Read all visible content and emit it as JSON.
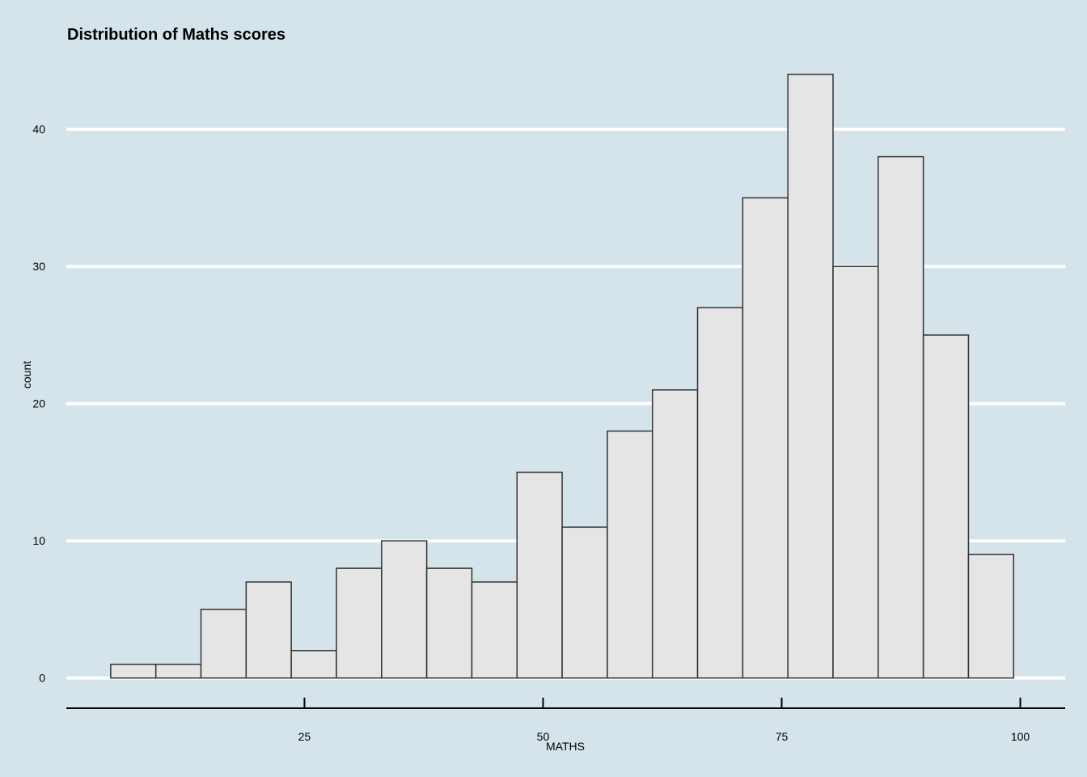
{
  "chart_data": {
    "type": "bar",
    "title": "Distribution of Maths scores",
    "xlabel": "MATHS",
    "ylabel": "count",
    "bin_width": 4.73,
    "bins": [
      {
        "start": 4.7,
        "end": 9.43,
        "count": 1
      },
      {
        "start": 9.43,
        "end": 14.16,
        "count": 1
      },
      {
        "start": 14.16,
        "end": 18.89,
        "count": 5
      },
      {
        "start": 18.89,
        "end": 23.62,
        "count": 7
      },
      {
        "start": 23.62,
        "end": 28.35,
        "count": 2
      },
      {
        "start": 28.35,
        "end": 33.08,
        "count": 8
      },
      {
        "start": 33.08,
        "end": 37.81,
        "count": 10
      },
      {
        "start": 37.81,
        "end": 42.54,
        "count": 8
      },
      {
        "start": 42.54,
        "end": 47.27,
        "count": 7
      },
      {
        "start": 47.27,
        "end": 52.0,
        "count": 15
      },
      {
        "start": 52.0,
        "end": 56.73,
        "count": 11
      },
      {
        "start": 56.73,
        "end": 61.46,
        "count": 18
      },
      {
        "start": 61.46,
        "end": 66.19,
        "count": 21
      },
      {
        "start": 66.19,
        "end": 70.92,
        "count": 27
      },
      {
        "start": 70.92,
        "end": 75.65,
        "count": 35
      },
      {
        "start": 75.65,
        "end": 80.38,
        "count": 44
      },
      {
        "start": 80.38,
        "end": 85.11,
        "count": 30
      },
      {
        "start": 85.11,
        "end": 89.84,
        "count": 38
      },
      {
        "start": 89.84,
        "end": 94.57,
        "count": 25
      },
      {
        "start": 94.57,
        "end": 99.3,
        "count": 9
      }
    ],
    "xlim": [
      0.05,
      104.7
    ],
    "ylim": [
      -2.2,
      46
    ],
    "x_ticks": [
      25,
      50,
      75,
      100
    ],
    "x_tick_labels": [
      "25",
      "50",
      "75",
      "100"
    ],
    "y_ticks": [
      0,
      10,
      20,
      30,
      40
    ],
    "y_tick_labels": [
      "0",
      "10",
      "20",
      "30",
      "40"
    ],
    "grid": "horizontal",
    "legend": "none",
    "colors": {
      "background": "#d5e4eb",
      "bar_fill": "#e5e5e5",
      "bar_stroke": "#333333",
      "grid": "#ffffff"
    }
  }
}
